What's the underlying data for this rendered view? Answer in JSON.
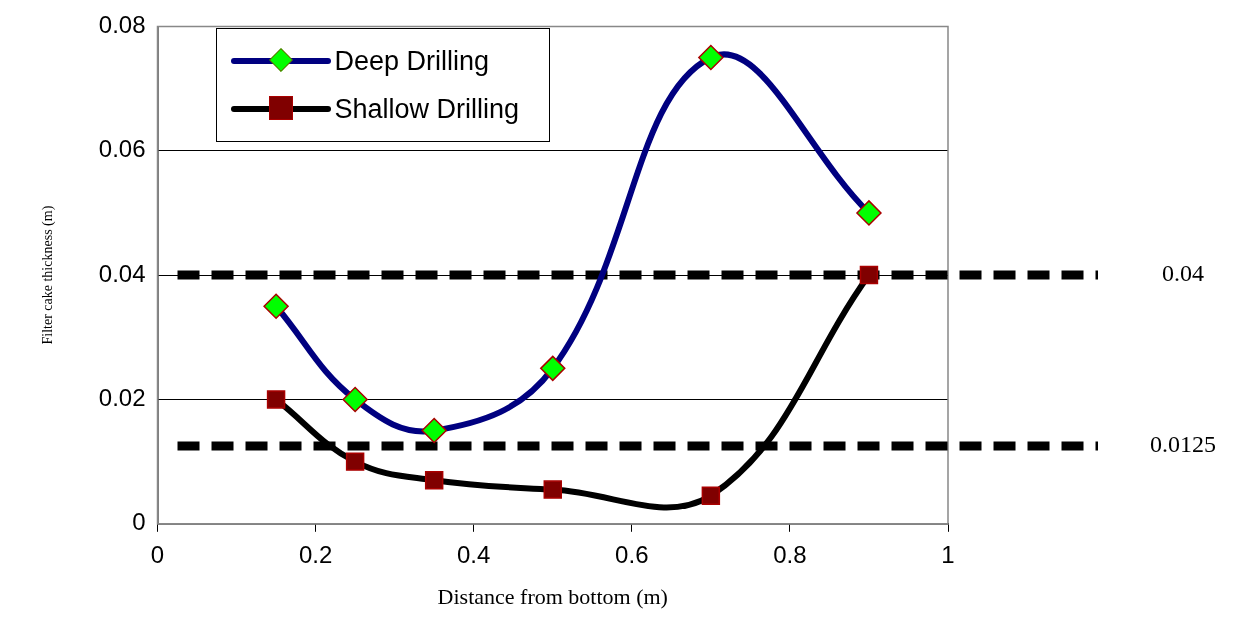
{
  "chart_data": {
    "type": "line",
    "xlabel": "Distance from bottom (m)",
    "ylabel": "Filter cake thickness (m)",
    "xlim": [
      0,
      1
    ],
    "xticks": [
      0,
      0.2,
      0.4,
      0.6,
      0.8,
      1
    ],
    "ylim": [
      0,
      0.08
    ],
    "yticks": [
      0,
      0.02,
      0.04,
      0.06,
      0.08
    ],
    "grid": "y",
    "legend": "top left",
    "series": [
      {
        "name": "Deep Drilling",
        "color": "#000080",
        "marker": "diamond",
        "x": [
          0.15,
          0.25,
          0.35,
          0.5,
          0.7,
          0.9
        ],
        "values": [
          0.035,
          0.02,
          0.015,
          0.025,
          0.075,
          0.05
        ]
      },
      {
        "name": "Shallow Drilling",
        "color": "#000000",
        "marker": "square",
        "x": [
          0.15,
          0.25,
          0.35,
          0.5,
          0.7,
          0.9
        ],
        "values": [
          0.02,
          0.01,
          0.007,
          0.0055,
          0.0045,
          0.04
        ]
      }
    ],
    "ref_lines": [
      {
        "axis": "y",
        "value": 0.04,
        "label": "0.04",
        "color": "#000000",
        "line_style": "dashed"
      },
      {
        "axis": "y",
        "value": 0.0125,
        "label": "0.0125",
        "color": "#000000",
        "line_style": "dashed"
      }
    ]
  }
}
